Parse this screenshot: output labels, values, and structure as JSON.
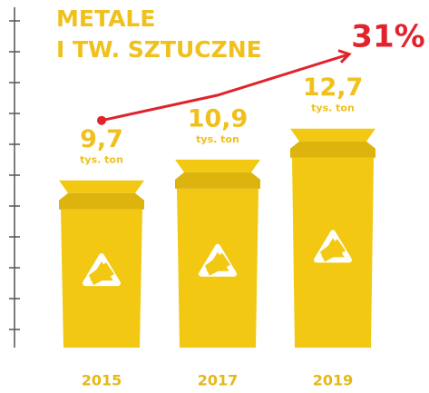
{
  "chart_data": {
    "type": "bin-bar",
    "title": [
      "METALE",
      "I TW. SZTUCZNE"
    ],
    "annotation": "31%",
    "unit": "tys. ton",
    "categories": [
      "2015",
      "2017",
      "2019"
    ],
    "values": [
      9.7,
      10.9,
      12.7
    ],
    "value_labels": [
      "9,7",
      "10,9",
      "12,7"
    ],
    "color": "#f2c813",
    "trend_color": "#e0232c",
    "ylim": [
      0,
      20
    ]
  }
}
